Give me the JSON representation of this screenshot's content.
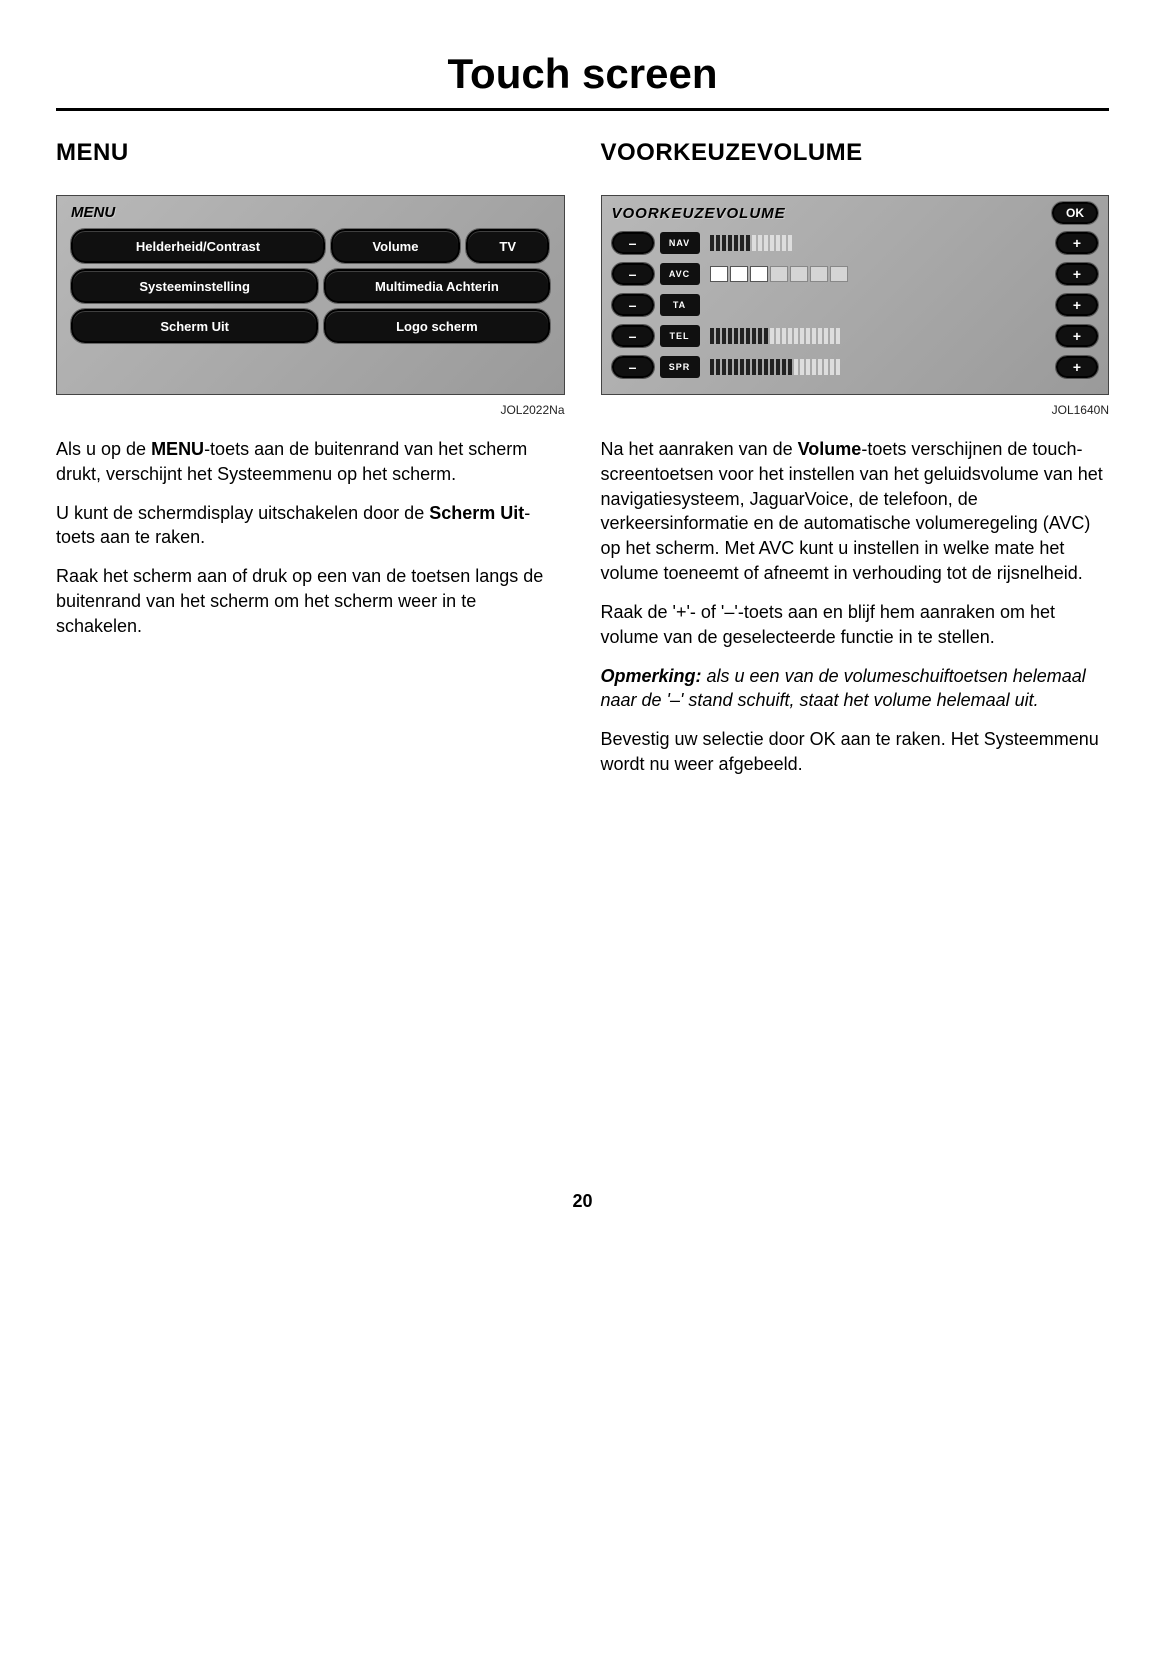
{
  "page": {
    "title": "Touch screen",
    "number": "20"
  },
  "left": {
    "heading": "MENU",
    "figCaption": "JOL2022Na",
    "screen": {
      "header": "MENU",
      "rows": [
        [
          {
            "label": "Helderheid/Contrast",
            "w": "left"
          },
          {
            "label": "Volume",
            "w": "vol"
          },
          {
            "label": "TV",
            "w": "tv"
          }
        ],
        [
          {
            "label": "Systeeminstelling",
            "w": "left"
          },
          {
            "label": "Multimedia Achterin",
            "w": "right"
          }
        ],
        [
          {
            "label": "Scherm Uit",
            "w": "left"
          },
          {
            "label": "Logo scherm",
            "w": "right"
          }
        ]
      ]
    },
    "p1": {
      "pre": "Als u op de ",
      "bold": "MENU",
      "post": "-toets aan de buitenrand van het scherm drukt, verschijnt het Systeemmenu op het scherm."
    },
    "p2": {
      "pre": "U kunt de schermdisplay uitschakelen door de ",
      "bold": "Scherm Uit",
      "post": "-toets aan te raken."
    },
    "p3": "Raak het scherm aan of druk op een van de toetsen langs de buitenrand van het scherm om het scherm weer in te schakelen."
  },
  "right": {
    "heading": "VOORKEUZEVOLUME",
    "figCaption": "JOL1640N",
    "screen": {
      "header": "VOORKEUZEVOLUME",
      "ok": "OK",
      "minus": "–",
      "plus": "+",
      "channels": [
        {
          "name": "NAV",
          "type": "ticks",
          "value": 7,
          "total": 14
        },
        {
          "name": "AVC",
          "type": "blocks",
          "value": 3,
          "total": 7
        },
        {
          "name": "TA",
          "type": "none"
        },
        {
          "name": "TEL",
          "type": "ticks",
          "value": 10,
          "total": 22
        },
        {
          "name": "SPR",
          "type": "ticks",
          "value": 14,
          "total": 22
        }
      ]
    },
    "p1": {
      "pre": "Na het aanraken van de ",
      "bold": "Volume",
      "post": "-toets verschijnen de touch-screentoetsen voor het instellen van het geluidsvolume van het navigatiesysteem, JaguarVoice, de telefoon, de verkeersinformatie en de automatische volumeregeling (AVC) op het scherm. Met AVC kunt u instellen in welke mate het volume toeneemt of afneemt in verhouding tot de rijsnelheid."
    },
    "p2": "Raak de '+'- of '–'-toets aan en blijf hem aanraken om het volume van de geselecteerde functie in te stellen.",
    "p3": {
      "lead": "Opmerking:",
      "rest": " als u een van de volumeschuiftoetsen helemaal naar de '–' stand schuift, staat het volume helemaal uit."
    },
    "p4": "Bevestig uw selectie door OK aan te raken. Het Systeemmenu wordt nu weer afgebeeld."
  }
}
